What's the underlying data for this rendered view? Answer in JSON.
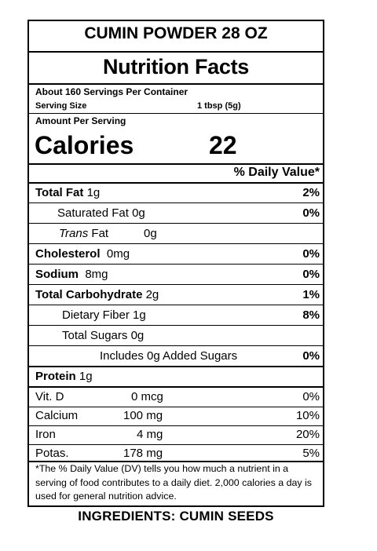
{
  "product_title": "CUMIN POWDER 28 OZ",
  "heading": "Nutrition Facts",
  "servings_per_container": "About 160 Servings Per Container",
  "serving_size_label": "Serving Size",
  "serving_size_value": "1 tbsp (5g)",
  "amount_per_serving": "Amount Per Serving",
  "calories_label": "Calories",
  "calories_value": "22",
  "daily_value_header": "% Daily Value*",
  "nutrients": {
    "total_fat": {
      "label": "Total Fat",
      "amount": "1g",
      "dv": "2%"
    },
    "saturated_fat": {
      "label": "Saturated Fat",
      "amount": "0g",
      "dv": "0%"
    },
    "trans_fat": {
      "label_italic": "Trans",
      "label": "Fat",
      "amount": "0g"
    },
    "cholesterol": {
      "label": "Cholesterol",
      "amount": "0mg",
      "dv": "0%"
    },
    "sodium": {
      "label": "Sodium",
      "amount": "8mg",
      "dv": "0%"
    },
    "total_carbohydrate": {
      "label": "Total Carbohydrate",
      "amount": "2g",
      "dv": "1%"
    },
    "dietary_fiber": {
      "label": "Dietary Fiber",
      "amount": "1g",
      "dv": "8%"
    },
    "total_sugars": {
      "label": "Total Sugars",
      "amount": "0g"
    },
    "added_sugars": {
      "label": "Includes 0g Added Sugars",
      "dv": "0%"
    },
    "protein": {
      "label": "Protein",
      "amount": "1g"
    }
  },
  "vitamins": [
    {
      "label": "Vit. D",
      "amount": "0 mcg",
      "dv": "0%"
    },
    {
      "label": "Calcium",
      "amount": "100 mg",
      "dv": "10%"
    },
    {
      "label": "Iron",
      "amount": "4 mg",
      "dv": "20%"
    },
    {
      "label": "Potas.",
      "amount": "178 mg",
      "dv": "5%"
    }
  ],
  "footnote": "*The % Daily Value (DV) tells you how much a nutrient in a serving of food contributes to a daily diet. 2,000 calories a day is used for general nutrition advice.",
  "ingredients": "INGREDIENTS: CUMIN SEEDS"
}
